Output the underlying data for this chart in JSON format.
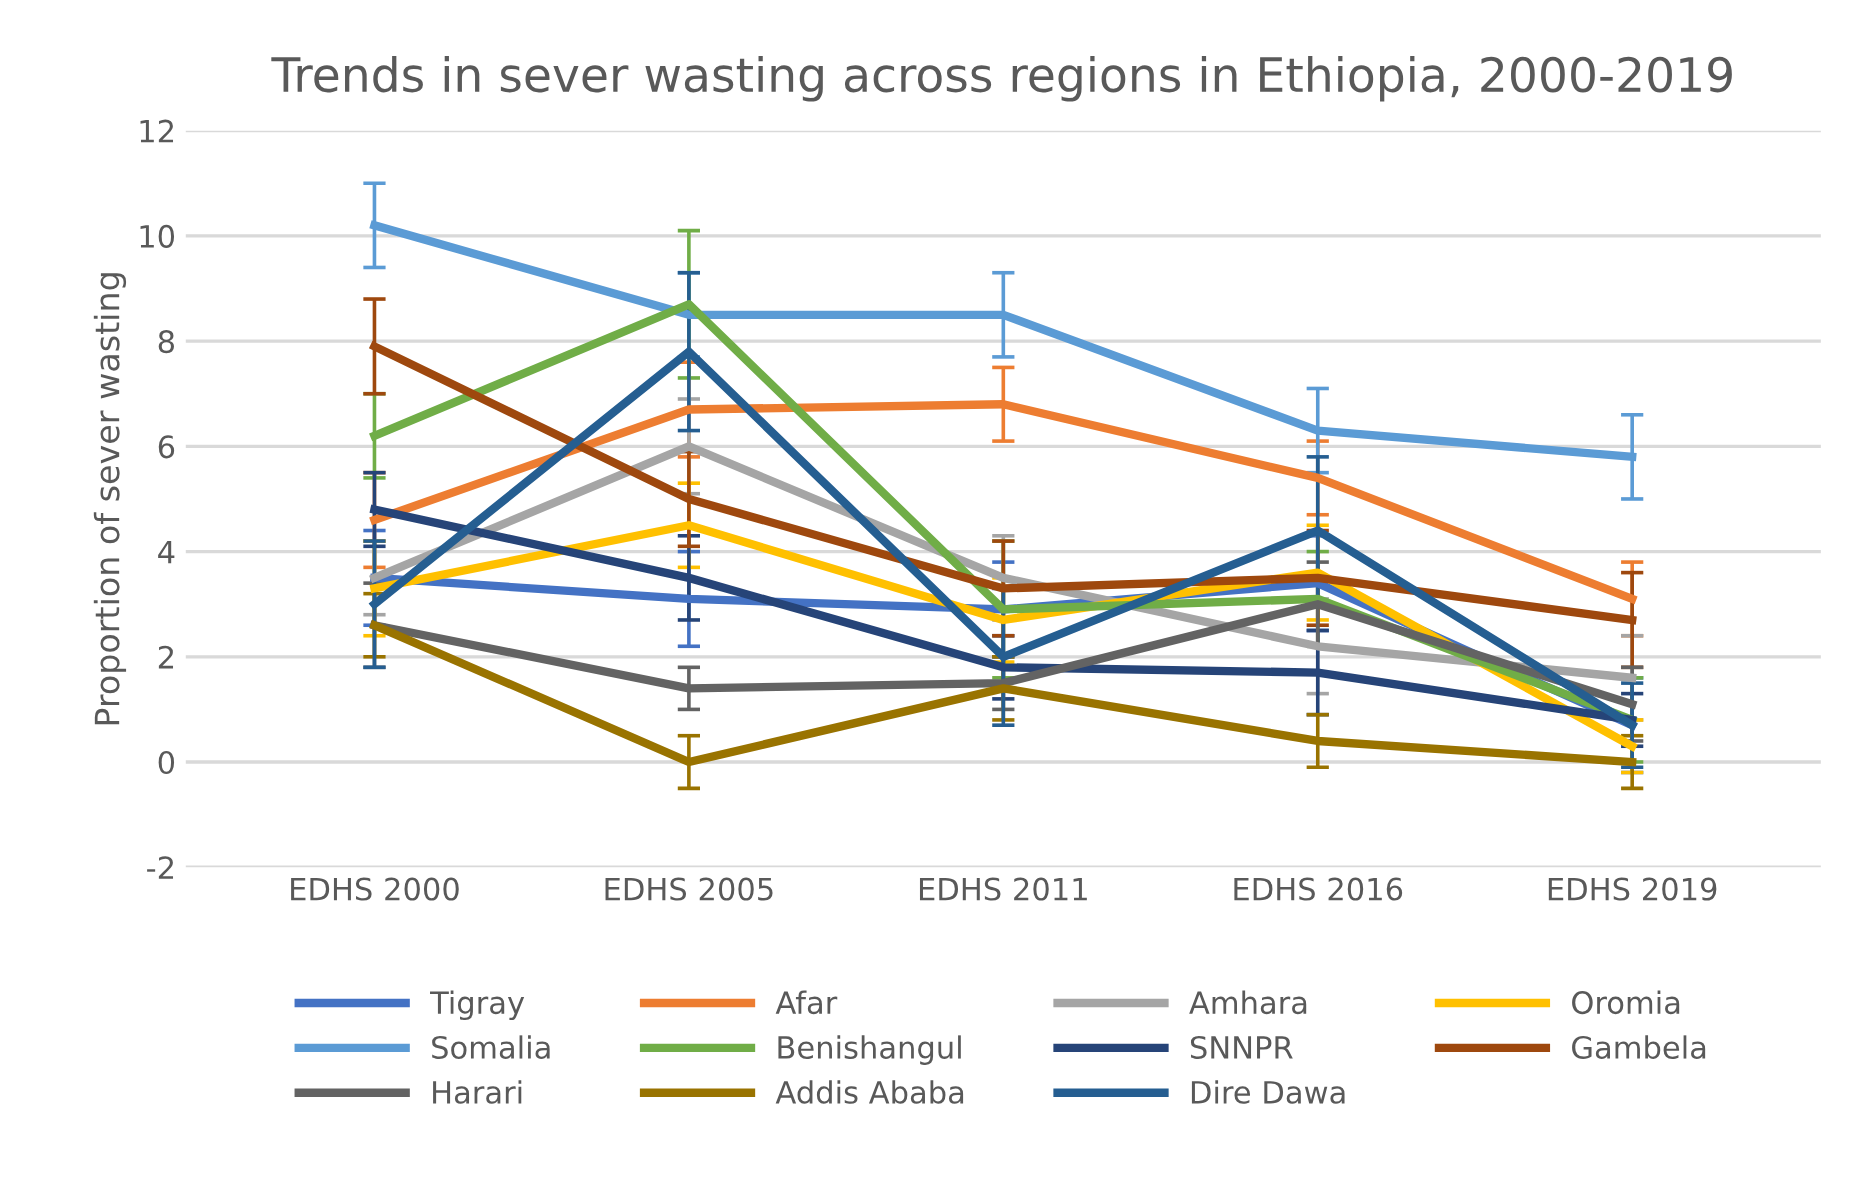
{
  "chart_data": {
    "type": "line",
    "title": "Trends in sever wasting across regions in Ethiopia, 2000-2019",
    "ylabel": "Proportion of sever wasting",
    "categories": [
      "EDHS 2000",
      "EDHS 2005",
      "EDHS 2011",
      "EDHS 2016",
      "EDHS 2019"
    ],
    "ylim": [
      -2,
      12
    ],
    "yticks": [
      -2,
      0,
      2,
      4,
      6,
      8,
      10,
      12
    ],
    "grid": "y",
    "legend": "bottom",
    "marker": "none",
    "line_style": "solid",
    "series": [
      {
        "name": "Tigray",
        "color": "#4472c4",
        "values": [
          3.5,
          3.1,
          2.9,
          3.4,
          0.7
        ],
        "errors": [
          0.9,
          0.9,
          0.9,
          0.9,
          0.9
        ]
      },
      {
        "name": "Afar",
        "color": "#ed7d31",
        "values": [
          4.6,
          6.7,
          6.8,
          5.4,
          3.1
        ],
        "errors": [
          0.9,
          0.9,
          0.7,
          0.7,
          0.7
        ]
      },
      {
        "name": "Amhara",
        "color": "#a5a5a5",
        "values": [
          3.5,
          6.0,
          3.5,
          2.2,
          1.6
        ],
        "errors": [
          0.7,
          0.9,
          0.8,
          0.9,
          0.8
        ]
      },
      {
        "name": "Oromia",
        "color": "#ffc000",
        "values": [
          3.3,
          4.5,
          2.7,
          3.6,
          0.3
        ],
        "errors": [
          0.9,
          0.8,
          0.8,
          0.9,
          0.5
        ]
      },
      {
        "name": "Somalia",
        "color": "#5b9bd5",
        "values": [
          10.2,
          8.5,
          8.5,
          6.3,
          5.8
        ],
        "errors": [
          0.8,
          0.8,
          0.8,
          0.8,
          0.8
        ]
      },
      {
        "name": "Benishangul",
        "color": "#70ad47",
        "values": [
          6.2,
          8.7,
          2.9,
          3.1,
          0.8
        ],
        "errors": [
          0.8,
          1.4,
          1.3,
          0.9,
          0.8
        ]
      },
      {
        "name": "SNNPR",
        "color": "#264478",
        "values": [
          4.8,
          3.5,
          1.8,
          1.7,
          0.8
        ],
        "errors": [
          0.7,
          0.8,
          0.6,
          0.8,
          0.5
        ]
      },
      {
        "name": "Gambela",
        "color": "#9e480e",
        "values": [
          7.9,
          5.0,
          3.3,
          3.5,
          2.7
        ],
        "errors": [
          0.9,
          0.9,
          0.9,
          0.9,
          0.9
        ]
      },
      {
        "name": "Harari",
        "color": "#636363",
        "values": [
          2.6,
          1.4,
          1.5,
          3.0,
          1.1
        ],
        "errors": [
          0.8,
          0.4,
          0.5,
          0.8,
          0.7
        ]
      },
      {
        "name": "Addis Ababa",
        "color": "#997300",
        "values": [
          2.6,
          0.0,
          1.4,
          0.4,
          0.0
        ],
        "errors": [
          0.6,
          0.5,
          0.6,
          0.5,
          0.5
        ]
      },
      {
        "name": "Dire Dawa",
        "color": "#255e91",
        "values": [
          3.0,
          7.8,
          2.0,
          4.4,
          0.7
        ],
        "errors": [
          1.2,
          1.5,
          1.3,
          1.4,
          0.8
        ]
      }
    ]
  }
}
